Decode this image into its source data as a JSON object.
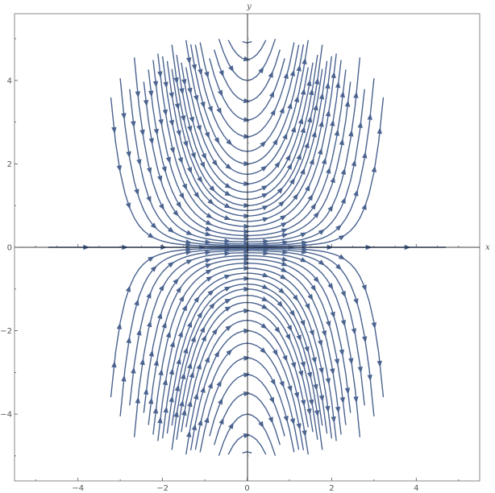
{
  "chart_data": {
    "type": "streamplot",
    "title": "",
    "xlabel": "x",
    "ylabel": "y",
    "xlim": [
      -5.5,
      5.5
    ],
    "ylim": [
      -5.6,
      5.6
    ],
    "data_domain": {
      "x": [
        -5,
        5
      ],
      "y": [
        -5,
        5
      ]
    },
    "field": {
      "dx": "1",
      "dy": "x*y"
    },
    "x_ticks": [
      -4,
      -2,
      0,
      2,
      4
    ],
    "x_tick_labels": [
      "−4",
      "−2",
      "0",
      "2",
      "4"
    ],
    "y_ticks": [
      -4,
      -2,
      0,
      2,
      4
    ],
    "y_tick_labels": [
      "−4",
      "−2",
      "0",
      "2",
      "4"
    ],
    "y_zero_label": "0",
    "grid": false,
    "frame": true,
    "colors": {
      "stream": "#4a638f",
      "axis": "#000000",
      "frame": "#888888",
      "tick_text": "#555555"
    }
  }
}
